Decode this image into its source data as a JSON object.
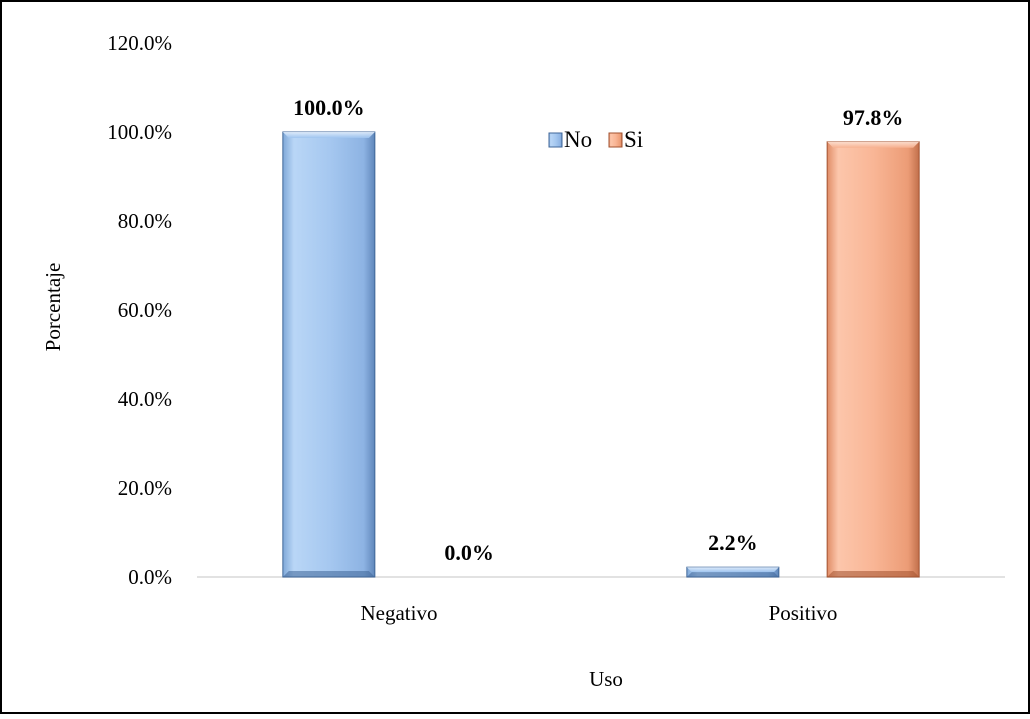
{
  "chart_data": {
    "type": "bar",
    "categories": [
      "Negativo",
      "Positivo"
    ],
    "series": [
      {
        "name": "No",
        "values": [
          100.0,
          2.2
        ],
        "color": "#9dc3ef"
      },
      {
        "name": "Si",
        "values": [
          0.0,
          97.8
        ],
        "color": "#f7b08f"
      }
    ],
    "data_labels": [
      [
        "100.0%",
        "2.2%"
      ],
      [
        "0.0%",
        "97.8%"
      ]
    ],
    "y_ticks": [
      "0.0%",
      "20.0%",
      "40.0%",
      "60.0%",
      "80.0%",
      "100.0%",
      "120.0%"
    ],
    "ylim": [
      0,
      120
    ],
    "xlabel": "Uso",
    "ylabel": "Porcentaje",
    "legend": "top-center",
    "grid": false
  }
}
